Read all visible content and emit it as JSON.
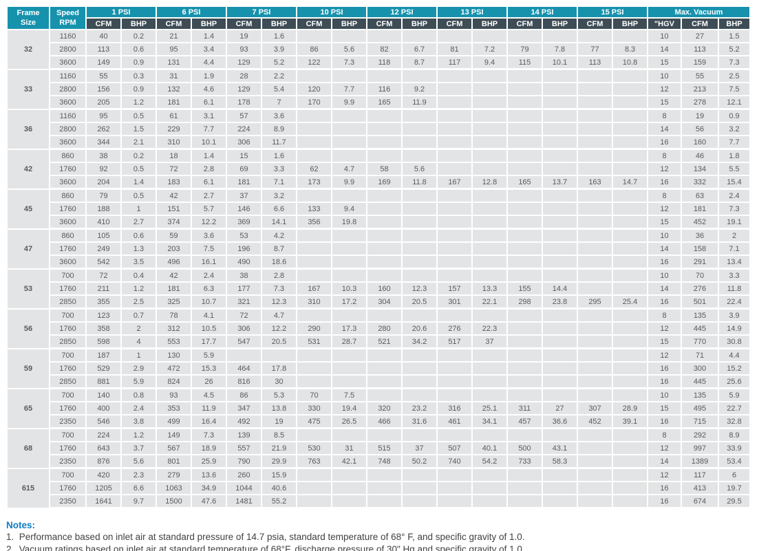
{
  "table": {
    "header": {
      "frame_header": {
        "line1": "Frame",
        "line2": "Size"
      },
      "speed_header": {
        "line1": "Speed",
        "line2": "RPM"
      },
      "psi_groups": [
        "1 PSI",
        "6 PSI",
        "7 PSI",
        "10 PSI",
        "12 PSI",
        "13 PSI",
        "14 PSI",
        "15 PSI"
      ],
      "psi_subheaders": [
        "CFM",
        "BHP"
      ],
      "vacuum_group": "Max. Vacuum",
      "vacuum_subheaders": [
        "\"HGV",
        "CFM",
        "BHP"
      ]
    },
    "groups": [
      {
        "frame": "32",
        "rows": [
          {
            "speed": "1160",
            "cells": [
              "40",
              "0.2",
              "21",
              "1.4",
              "19",
              "1.6",
              "",
              "",
              "",
              "",
              "",
              "",
              "",
              "",
              "",
              "",
              "10",
              "27",
              "1.5"
            ]
          },
          {
            "speed": "2800",
            "cells": [
              "113",
              "0.6",
              "95",
              "3.4",
              "93",
              "3.9",
              "86",
              "5.6",
              "82",
              "6.7",
              "81",
              "7.2",
              "79",
              "7.8",
              "77",
              "8.3",
              "14",
              "113",
              "5.2"
            ]
          },
          {
            "speed": "3600",
            "cells": [
              "149",
              "0.9",
              "131",
              "4.4",
              "129",
              "5.2",
              "122",
              "7.3",
              "118",
              "8.7",
              "117",
              "9.4",
              "115",
              "10.1",
              "113",
              "10.8",
              "15",
              "159",
              "7.3"
            ]
          }
        ]
      },
      {
        "frame": "33",
        "rows": [
          {
            "speed": "1160",
            "cells": [
              "55",
              "0.3",
              "31",
              "1.9",
              "28",
              "2.2",
              "",
              "",
              "",
              "",
              "",
              "",
              "",
              "",
              "",
              "",
              "10",
              "55",
              "2.5"
            ]
          },
          {
            "speed": "2800",
            "cells": [
              "156",
              "0.9",
              "132",
              "4.6",
              "129",
              "5.4",
              "120",
              "7.7",
              "116",
              "9.2",
              "",
              "",
              "",
              "",
              "",
              "",
              "12",
              "213",
              "7.5"
            ]
          },
          {
            "speed": "3600",
            "cells": [
              "205",
              "1.2",
              "181",
              "6.1",
              "178",
              "7",
              "170",
              "9.9",
              "165",
              "11.9",
              "",
              "",
              "",
              "",
              "",
              "",
              "15",
              "278",
              "12.1"
            ]
          }
        ]
      },
      {
        "frame": "36",
        "rows": [
          {
            "speed": "1160",
            "cells": [
              "95",
              "0.5",
              "61",
              "3.1",
              "57",
              "3.6",
              "",
              "",
              "",
              "",
              "",
              "",
              "",
              "",
              "",
              "",
              "8",
              "19",
              "0.9"
            ]
          },
          {
            "speed": "2800",
            "cells": [
              "262",
              "1.5",
              "229",
              "7.7",
              "224",
              "8.9",
              "",
              "",
              "",
              "",
              "",
              "",
              "",
              "",
              "",
              "",
              "14",
              "56",
              "3.2"
            ]
          },
          {
            "speed": "3600",
            "cells": [
              "344",
              "2.1",
              "310",
              "10.1",
              "306",
              "11.7",
              "",
              "",
              "",
              "",
              "",
              "",
              "",
              "",
              "",
              "",
              "16",
              "160",
              "7.7"
            ]
          }
        ]
      },
      {
        "frame": "42",
        "rows": [
          {
            "speed": "860",
            "cells": [
              "38",
              "0.2",
              "18",
              "1.4",
              "15",
              "1.6",
              "",
              "",
              "",
              "",
              "",
              "",
              "",
              "",
              "",
              "",
              "8",
              "46",
              "1.8"
            ]
          },
          {
            "speed": "1760",
            "cells": [
              "92",
              "0.5",
              "72",
              "2.8",
              "69",
              "3.3",
              "62",
              "4.7",
              "58",
              "5.6",
              "",
              "",
              "",
              "",
              "",
              "",
              "12",
              "134",
              "5.5"
            ]
          },
          {
            "speed": "3600",
            "cells": [
              "204",
              "1.4",
              "183",
              "6.1",
              "181",
              "7.1",
              "173",
              "9.9",
              "169",
              "11.8",
              "167",
              "12.8",
              "165",
              "13.7",
              "163",
              "14.7",
              "16",
              "332",
              "15.4"
            ]
          }
        ]
      },
      {
        "frame": "45",
        "rows": [
          {
            "speed": "860",
            "cells": [
              "79",
              "0.5",
              "42",
              "2.7",
              "37",
              "3.2",
              "",
              "",
              "",
              "",
              "",
              "",
              "",
              "",
              "",
              "",
              "8",
              "63",
              "2.4"
            ]
          },
          {
            "speed": "1760",
            "cells": [
              "188",
              "1",
              "151",
              "5.7",
              "146",
              "6.6",
              "133",
              "9.4",
              "",
              "",
              "",
              "",
              "",
              "",
              "",
              "",
              "12",
              "181",
              "7.3"
            ]
          },
          {
            "speed": "3600",
            "cells": [
              "410",
              "2.7",
              "374",
              "12.2",
              "369",
              "14.1",
              "356",
              "19.8",
              "",
              "",
              "",
              "",
              "",
              "",
              "",
              "",
              "15",
              "452",
              "19.1"
            ]
          }
        ]
      },
      {
        "frame": "47",
        "rows": [
          {
            "speed": "860",
            "cells": [
              "105",
              "0.6",
              "59",
              "3.6",
              "53",
              "4.2",
              "",
              "",
              "",
              "",
              "",
              "",
              "",
              "",
              "",
              "",
              "10",
              "36",
              "2"
            ]
          },
          {
            "speed": "1760",
            "cells": [
              "249",
              "1.3",
              "203",
              "7.5",
              "196",
              "8.7",
              "",
              "",
              "",
              "",
              "",
              "",
              "",
              "",
              "",
              "",
              "14",
              "158",
              "7.1"
            ]
          },
          {
            "speed": "3600",
            "cells": [
              "542",
              "3.5",
              "496",
              "16.1",
              "490",
              "18.6",
              "",
              "",
              "",
              "",
              "",
              "",
              "",
              "",
              "",
              "",
              "16",
              "291",
              "13.4"
            ]
          }
        ]
      },
      {
        "frame": "53",
        "rows": [
          {
            "speed": "700",
            "cells": [
              "72",
              "0.4",
              "42",
              "2.4",
              "38",
              "2.8",
              "",
              "",
              "",
              "",
              "",
              "",
              "",
              "",
              "",
              "",
              "10",
              "70",
              "3.3"
            ]
          },
          {
            "speed": "1760",
            "cells": [
              "211",
              "1.2",
              "181",
              "6.3",
              "177",
              "7.3",
              "167",
              "10.3",
              "160",
              "12.3",
              "157",
              "13.3",
              "155",
              "14.4",
              "",
              "",
              "14",
              "276",
              "11.8"
            ]
          },
          {
            "speed": "2850",
            "cells": [
              "355",
              "2.5",
              "325",
              "10.7",
              "321",
              "12.3",
              "310",
              "17.2",
              "304",
              "20.5",
              "301",
              "22.1",
              "298",
              "23.8",
              "295",
              "25.4",
              "16",
              "501",
              "22.4"
            ]
          }
        ]
      },
      {
        "frame": "56",
        "rows": [
          {
            "speed": "700",
            "cells": [
              "123",
              "0.7",
              "78",
              "4.1",
              "72",
              "4.7",
              "",
              "",
              "",
              "",
              "",
              "",
              "",
              "",
              "",
              "",
              "8",
              "135",
              "3.9"
            ]
          },
          {
            "speed": "1760",
            "cells": [
              "358",
              "2",
              "312",
              "10.5",
              "306",
              "12.2",
              "290",
              "17.3",
              "280",
              "20.6",
              "276",
              "22.3",
              "",
              "",
              "",
              "",
              "12",
              "445",
              "14.9"
            ]
          },
          {
            "speed": "2850",
            "cells": [
              "598",
              "4",
              "553",
              "17.7",
              "547",
              "20.5",
              "531",
              "28.7",
              "521",
              "34.2",
              "517",
              "37",
              "",
              "",
              "",
              "",
              "15",
              "770",
              "30.8"
            ]
          }
        ]
      },
      {
        "frame": "59",
        "rows": [
          {
            "speed": "700",
            "cells": [
              "187",
              "1",
              "130",
              "5.9",
              "",
              "",
              "",
              "",
              "",
              "",
              "",
              "",
              "",
              "",
              "",
              "",
              "12",
              "71",
              "4.4"
            ]
          },
          {
            "speed": "1760",
            "cells": [
              "529",
              "2.9",
              "472",
              "15.3",
              "464",
              "17.8",
              "",
              "",
              "",
              "",
              "",
              "",
              "",
              "",
              "",
              "",
              "16",
              "300",
              "15.2"
            ]
          },
          {
            "speed": "2850",
            "cells": [
              "881",
              "5.9",
              "824",
              "26",
              "816",
              "30",
              "",
              "",
              "",
              "",
              "",
              "",
              "",
              "",
              "",
              "",
              "16",
              "445",
              "25.6"
            ]
          }
        ]
      },
      {
        "frame": "65",
        "rows": [
          {
            "speed": "700",
            "cells": [
              "140",
              "0.8",
              "93",
              "4.5",
              "86",
              "5.3",
              "70",
              "7.5",
              "",
              "",
              "",
              "",
              "",
              "",
              "",
              "",
              "10",
              "135",
              "5.9"
            ]
          },
          {
            "speed": "1760",
            "cells": [
              "400",
              "2.4",
              "353",
              "11.9",
              "347",
              "13.8",
              "330",
              "19.4",
              "320",
              "23.2",
              "316",
              "25.1",
              "311",
              "27",
              "307",
              "28.9",
              "15",
              "495",
              "22.7"
            ]
          },
          {
            "speed": "2350",
            "cells": [
              "546",
              "3.8",
              "499",
              "16.4",
              "492",
              "19",
              "475",
              "26.5",
              "466",
              "31.6",
              "461",
              "34.1",
              "457",
              "36.6",
              "452",
              "39.1",
              "16",
              "715",
              "32.8"
            ]
          }
        ]
      },
      {
        "frame": "68",
        "rows": [
          {
            "speed": "700",
            "cells": [
              "224",
              "1.2",
              "149",
              "7.3",
              "139",
              "8.5",
              "",
              "",
              "",
              "",
              "",
              "",
              "",
              "",
              "",
              "",
              "8",
              "292",
              "8.9"
            ]
          },
          {
            "speed": "1760",
            "cells": [
              "643",
              "3.7",
              "567",
              "18.9",
              "557",
              "21.9",
              "530",
              "31",
              "515",
              "37",
              "507",
              "40.1",
              "500",
              "43.1",
              "",
              "",
              "12",
              "997",
              "33.9"
            ]
          },
          {
            "speed": "2350",
            "cells": [
              "876",
              "5.6",
              "801",
              "25.9",
              "790",
              "29.9",
              "763",
              "42.1",
              "748",
              "50.2",
              "740",
              "54.2",
              "733",
              "58.3",
              "",
              "",
              "14",
              "1389",
              "53.4"
            ]
          }
        ]
      },
      {
        "frame": "615",
        "rows": [
          {
            "speed": "700",
            "cells": [
              "420",
              "2.3",
              "279",
              "13.6",
              "260",
              "15.9",
              "",
              "",
              "",
              "",
              "",
              "",
              "",
              "",
              "",
              "",
              "12",
              "117",
              "6"
            ]
          },
          {
            "speed": "1760",
            "cells": [
              "1205",
              "6.6",
              "1063",
              "34.9",
              "1044",
              "40.6",
              "",
              "",
              "",
              "",
              "",
              "",
              "",
              "",
              "",
              "",
              "16",
              "413",
              "19.7"
            ]
          },
          {
            "speed": "2350",
            "cells": [
              "1641",
              "9.7",
              "1500",
              "47.6",
              "1481",
              "55.2",
              "",
              "",
              "",
              "",
              "",
              "",
              "",
              "",
              "",
              "",
              "16",
              "674",
              "29.5"
            ]
          }
        ]
      }
    ]
  },
  "notes": {
    "heading": "Notes:",
    "items": [
      "1.  Performance based on inlet air at standard pressure of 14.7 psia, standard temperature of 68° F, and specific gravity of 1.0.",
      "2.  Vacuum ratings based on inlet air at standard temperature of 68°F, discharge pressure of 30\" Hg and specific gravity of 1.0."
    ]
  },
  "colors": {
    "header_teal": "#1692ad",
    "subheader_slate": "#3e4d55",
    "row_background": "#e3e4e5",
    "cell_text": "#595a5c",
    "notes_heading_blue": "#0f7dc5"
  }
}
